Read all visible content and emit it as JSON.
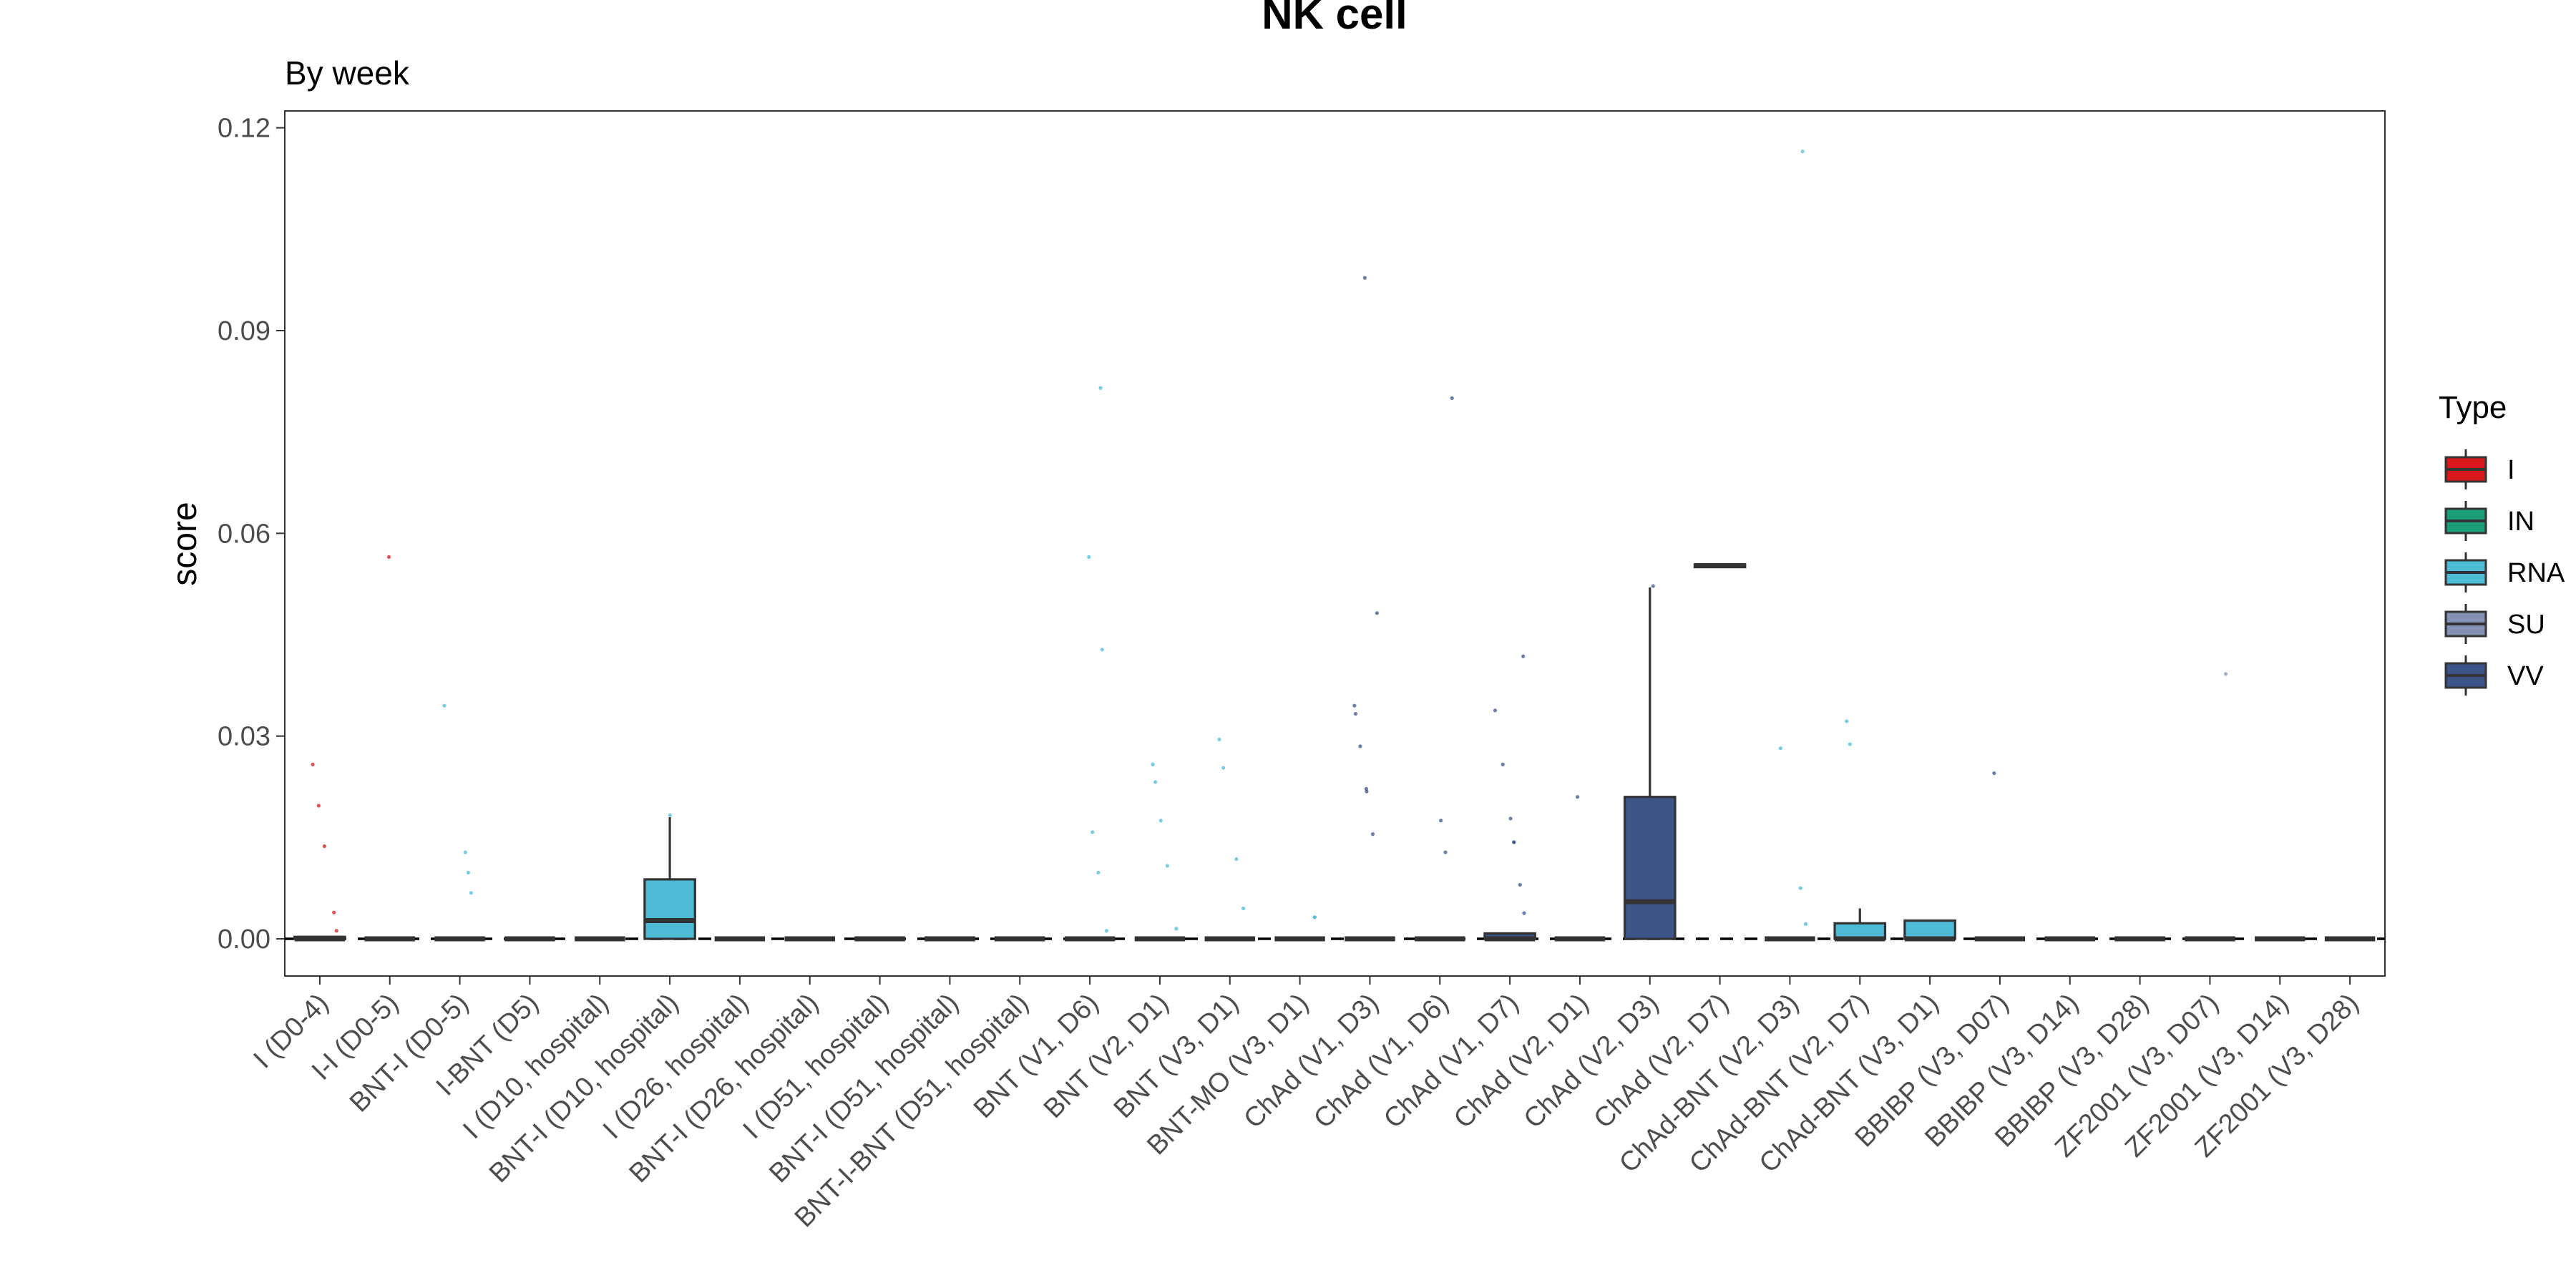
{
  "chart_data": {
    "type": "box",
    "title": "NK cell",
    "subtitle": "By week",
    "xlabel": "",
    "ylabel": "score",
    "ylim": [
      -0.0055,
      0.1225
    ],
    "yticks": [
      0.0,
      0.03,
      0.06,
      0.09,
      0.12
    ],
    "ytick_labels": [
      "0.00",
      "0.03",
      "0.06",
      "0.09",
      "0.12"
    ],
    "grid": false,
    "reference_line": 0.0,
    "legend": {
      "title": "Type",
      "position": "right",
      "entries": [
        {
          "label": "I",
          "color": "#D7191C"
        },
        {
          "label": "IN",
          "color": "#1B9E77"
        },
        {
          "label": "RNA",
          "color": "#4DBBD5"
        },
        {
          "label": "SU",
          "color": "#8491B4"
        },
        {
          "label": "VV",
          "color": "#3C5488"
        }
      ]
    },
    "categories": [
      "I (D0-4)",
      "I-I (D0-5)",
      "BNT-I (D0-5)",
      "I-BNT (D5)",
      "I (D10, hospital)",
      "BNT-I (D10, hospital)",
      "I (D26, hospital)",
      "BNT-I (D26, hospital)",
      "I (D51, hospital)",
      "BNT-I (D51, hospital)",
      "BNT-I-BNT (D51, hospital)",
      "BNT (V1, D6)",
      "BNT (V2, D1)",
      "BNT (V3, D1)",
      "BNT-MO (V3, D1)",
      "ChAd (V1, D3)",
      "ChAd (V1, D6)",
      "ChAd (V1, D7)",
      "ChAd (V2, D1)",
      "ChAd (V2, D3)",
      "ChAd (V2, D7)",
      "ChAd-BNT (V2, D3)",
      "ChAd-BNT (V2, D7)",
      "ChAd-BNT (V3, D1)",
      "BBIBP (V3, D07)",
      "BBIBP (V3, D14)",
      "BBIBP (V3, D28)",
      "ZF2001 (V3, D07)",
      "ZF2001 (V3, D14)",
      "ZF2001 (V3, D28)"
    ],
    "boxes": [
      {
        "type": "I",
        "q1": 0.0,
        "median": 0.0,
        "q3": 0.0003,
        "whisker_low": 0.0,
        "whisker_high": 0.0003,
        "outliers": [
          0.0197,
          0.0137,
          0.0039,
          0.0258,
          0.0012
        ]
      },
      {
        "type": "I",
        "q1": 0.0,
        "median": 0.0,
        "q3": 0.0,
        "whisker_low": 0.0,
        "whisker_high": 0.0,
        "outliers": [
          0.0565
        ]
      },
      {
        "type": "RNA",
        "q1": 0.0,
        "median": 0.0,
        "q3": 0.0,
        "whisker_low": 0.0,
        "whisker_high": 0.0,
        "outliers": [
          0.0345,
          0.0128,
          0.0098,
          0.0068
        ]
      },
      {
        "type": "I",
        "q1": 0.0,
        "median": 0.0,
        "q3": 0.0,
        "whisker_low": 0.0,
        "whisker_high": 0.0,
        "outliers": []
      },
      {
        "type": "I",
        "q1": 0.0,
        "median": 0.0,
        "q3": 0.0,
        "whisker_low": 0.0,
        "whisker_high": 0.0,
        "outliers": []
      },
      {
        "type": "RNA",
        "q1": 0.0,
        "median": 0.0027,
        "q3": 0.0088,
        "whisker_low": 0.0,
        "whisker_high": 0.018,
        "outliers": [
          0.0183
        ]
      },
      {
        "type": "I",
        "q1": 0.0,
        "median": 0.0,
        "q3": 0.0,
        "whisker_low": 0.0,
        "whisker_high": 0.0,
        "outliers": []
      },
      {
        "type": "RNA",
        "q1": 0.0,
        "median": 0.0,
        "q3": 0.0,
        "whisker_low": 0.0,
        "whisker_high": 0.0,
        "outliers": []
      },
      {
        "type": "I",
        "q1": 0.0,
        "median": 0.0,
        "q3": 0.0,
        "whisker_low": 0.0,
        "whisker_high": 0.0,
        "outliers": []
      },
      {
        "type": "RNA",
        "q1": 0.0,
        "median": 0.0,
        "q3": 0.0,
        "whisker_low": 0.0,
        "whisker_high": 0.0,
        "outliers": []
      },
      {
        "type": "RNA",
        "q1": 0.0,
        "median": 0.0,
        "q3": 0.0,
        "whisker_low": 0.0,
        "whisker_high": 0.0,
        "outliers": []
      },
      {
        "type": "RNA",
        "q1": 0.0,
        "median": 0.0,
        "q3": 0.0,
        "whisker_low": 0.0,
        "whisker_high": 0.0,
        "outliers": [
          0.0815,
          0.0428,
          0.0565,
          0.0158,
          0.0098,
          0.0012
        ]
      },
      {
        "type": "RNA",
        "q1": 0.0,
        "median": 0.0,
        "q3": 0.0,
        "whisker_low": 0.0,
        "whisker_high": 0.0,
        "outliers": [
          0.0258,
          0.0232,
          0.0175,
          0.0108,
          0.0015
        ]
      },
      {
        "type": "RNA",
        "q1": 0.0,
        "median": 0.0,
        "q3": 0.0,
        "whisker_low": 0.0,
        "whisker_high": 0.0,
        "outliers": [
          0.0295,
          0.0253,
          0.0118,
          0.0045
        ]
      },
      {
        "type": "RNA",
        "q1": 0.0,
        "median": 0.0,
        "q3": 0.0,
        "whisker_low": 0.0,
        "whisker_high": 0.0,
        "outliers": [
          0.0032,
          0.0032
        ]
      },
      {
        "type": "VV",
        "q1": 0.0,
        "median": 0.0,
        "q3": 0.0,
        "whisker_low": 0.0,
        "whisker_high": 0.0,
        "outliers": [
          0.0978,
          0.0482,
          0.0345,
          0.0333,
          0.0285,
          0.0222,
          0.0218,
          0.0155
        ]
      },
      {
        "type": "VV",
        "q1": 0.0,
        "median": 0.0,
        "q3": 0.0,
        "whisker_low": 0.0,
        "whisker_high": 0.0,
        "outliers": [
          0.08,
          0.0175,
          0.0128
        ]
      },
      {
        "type": "VV",
        "q1": 0.0,
        "median": 0.0,
        "q3": 0.0008,
        "whisker_low": 0.0,
        "whisker_high": 0.0008,
        "outliers": [
          0.0418,
          0.0338,
          0.0258,
          0.0178,
          0.0143,
          0.0143,
          0.008,
          0.0038
        ]
      },
      {
        "type": "VV",
        "q1": 0.0,
        "median": 0.0,
        "q3": 0.0,
        "whisker_low": 0.0,
        "whisker_high": 0.0,
        "outliers": [
          0.021
        ]
      },
      {
        "type": "VV",
        "q1": 0.0,
        "median": 0.0055,
        "q3": 0.021,
        "whisker_low": 0.0,
        "whisker_high": 0.052,
        "outliers": [
          0.0522
        ]
      },
      {
        "type": "VV",
        "q1": 0.055,
        "median": 0.0552,
        "q3": 0.0554,
        "whisker_low": 0.055,
        "whisker_high": 0.0554,
        "outliers": []
      },
      {
        "type": "RNA",
        "q1": 0.0,
        "median": 0.0,
        "q3": 0.0,
        "whisker_low": 0.0,
        "whisker_high": 0.0,
        "outliers": [
          0.1165,
          0.0282,
          0.0075,
          0.0022
        ]
      },
      {
        "type": "RNA",
        "q1": 0.0,
        "median": 0.0,
        "q3": 0.0023,
        "whisker_low": 0.0,
        "whisker_high": 0.0045,
        "outliers": [
          0.0322,
          0.0288
        ]
      },
      {
        "type": "RNA",
        "q1": 0.0,
        "median": 0.0,
        "q3": 0.0027,
        "whisker_low": 0.0,
        "whisker_high": 0.0027,
        "outliers": []
      },
      {
        "type": "VV",
        "q1": 0.0,
        "median": 0.0,
        "q3": 0.0,
        "whisker_low": 0.0,
        "whisker_high": 0.0,
        "outliers": [
          0.0245
        ]
      },
      {
        "type": "VV",
        "q1": 0.0,
        "median": 0.0,
        "q3": 0.0,
        "whisker_low": 0.0,
        "whisker_high": 0.0,
        "outliers": []
      },
      {
        "type": "VV",
        "q1": 0.0,
        "median": 0.0,
        "q3": 0.0,
        "whisker_low": 0.0,
        "whisker_high": 0.0,
        "outliers": []
      },
      {
        "type": "SU",
        "q1": 0.0,
        "median": 0.0,
        "q3": 0.0,
        "whisker_low": 0.0,
        "whisker_high": 0.0,
        "outliers": [
          0.0392
        ]
      },
      {
        "type": "SU",
        "q1": 0.0,
        "median": 0.0,
        "q3": 0.0,
        "whisker_low": 0.0,
        "whisker_high": 0.0,
        "outliers": []
      },
      {
        "type": "SU",
        "q1": 0.0,
        "median": 0.0,
        "q3": 0.0,
        "whisker_low": 0.0,
        "whisker_high": 0.0,
        "outliers": []
      }
    ]
  }
}
